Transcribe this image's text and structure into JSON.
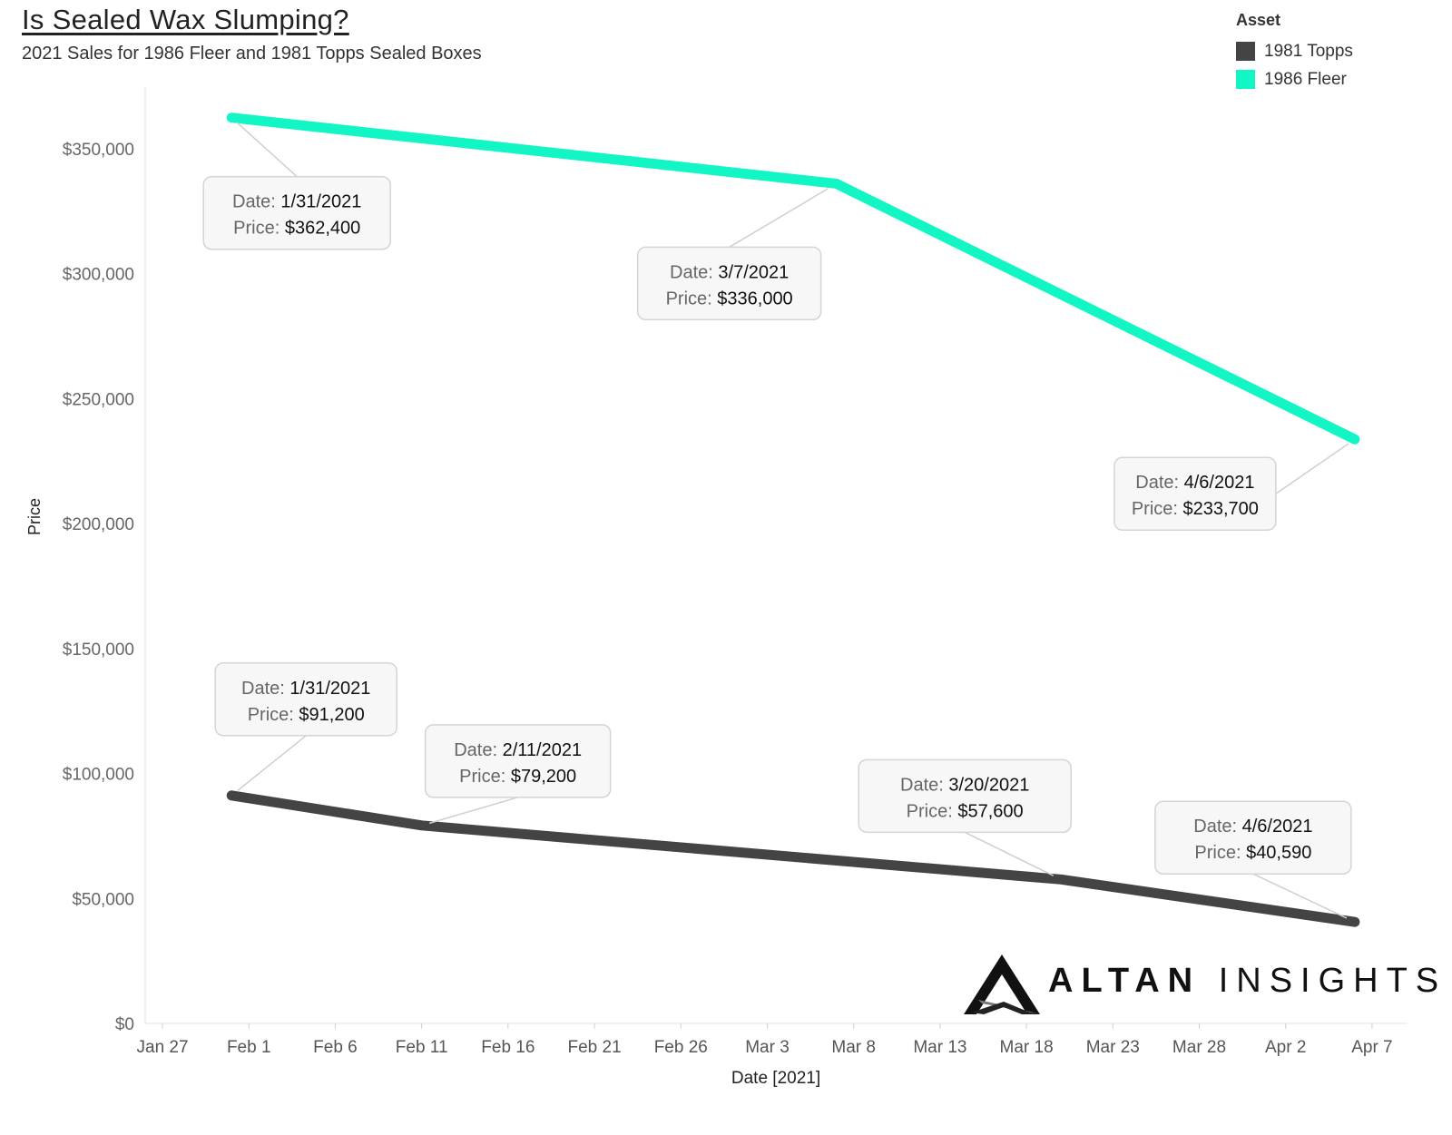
{
  "header": {
    "title": "Is Sealed Wax Slumping?",
    "subtitle": "2021 Sales for 1986 Fleer and 1981 Topps Sealed Boxes"
  },
  "legend": {
    "title": "Asset",
    "items": [
      {
        "label": "1981 Topps",
        "color": "#444444"
      },
      {
        "label": "1986 Fleer",
        "color": "#12f5c4"
      }
    ]
  },
  "logo": {
    "part1": "ALTAN",
    "part2": "INSIGHTS"
  },
  "chart_data": {
    "type": "line",
    "xlabel": "Date [2021]",
    "ylabel": "Price",
    "xlim": [
      "2021-01-26",
      "2021-04-09"
    ],
    "ylim": [
      0,
      375000
    ],
    "grid": false,
    "legend_position": "top-right",
    "x_ticks": [
      {
        "date": "2021-01-27",
        "label": "Jan 27"
      },
      {
        "date": "2021-02-01",
        "label": "Feb 1"
      },
      {
        "date": "2021-02-06",
        "label": "Feb 6"
      },
      {
        "date": "2021-02-11",
        "label": "Feb 11"
      },
      {
        "date": "2021-02-16",
        "label": "Feb 16"
      },
      {
        "date": "2021-02-21",
        "label": "Feb 21"
      },
      {
        "date": "2021-02-26",
        "label": "Feb 26"
      },
      {
        "date": "2021-03-03",
        "label": "Mar 3"
      },
      {
        "date": "2021-03-08",
        "label": "Mar 8"
      },
      {
        "date": "2021-03-13",
        "label": "Mar 13"
      },
      {
        "date": "2021-03-18",
        "label": "Mar 18"
      },
      {
        "date": "2021-03-23",
        "label": "Mar 23"
      },
      {
        "date": "2021-03-28",
        "label": "Mar 28"
      },
      {
        "date": "2021-04-02",
        "label": "Apr 2"
      },
      {
        "date": "2021-04-07",
        "label": "Apr 7"
      }
    ],
    "y_ticks": [
      {
        "value": 0,
        "label": "$0"
      },
      {
        "value": 50000,
        "label": "$50,000"
      },
      {
        "value": 100000,
        "label": "$100,000"
      },
      {
        "value": 150000,
        "label": "$150,000"
      },
      {
        "value": 200000,
        "label": "$200,000"
      },
      {
        "value": 250000,
        "label": "$250,000"
      },
      {
        "value": 300000,
        "label": "$300,000"
      },
      {
        "value": 350000,
        "label": "$350,000"
      }
    ],
    "series": [
      {
        "name": "1986 Fleer",
        "color": "#12f5c4",
        "points": [
          {
            "x": "2021-01-31",
            "y": 362400,
            "date_label": "1/31/2021",
            "price_label": "$362,400"
          },
          {
            "x": "2021-03-07",
            "y": 336000,
            "date_label": "3/7/2021",
            "price_label": "$336,000"
          },
          {
            "x": "2021-04-06",
            "y": 233700,
            "date_label": "4/6/2021",
            "price_label": "$233,700"
          }
        ]
      },
      {
        "name": "1981 Topps",
        "color": "#444444",
        "points": [
          {
            "x": "2021-01-31",
            "y": 91200,
            "date_label": "1/31/2021",
            "price_label": "$91,200"
          },
          {
            "x": "2021-02-11",
            "y": 79200,
            "date_label": "2/11/2021",
            "price_label": "$79,200"
          },
          {
            "x": "2021-03-20",
            "y": 57600,
            "date_label": "3/20/2021",
            "price_label": "$57,600"
          },
          {
            "x": "2021-04-06",
            "y": 40590,
            "date_label": "4/6/2021",
            "price_label": "$40,590"
          }
        ]
      }
    ],
    "annotation_prefix": {
      "date": "Date:",
      "price": "Price:"
    }
  }
}
